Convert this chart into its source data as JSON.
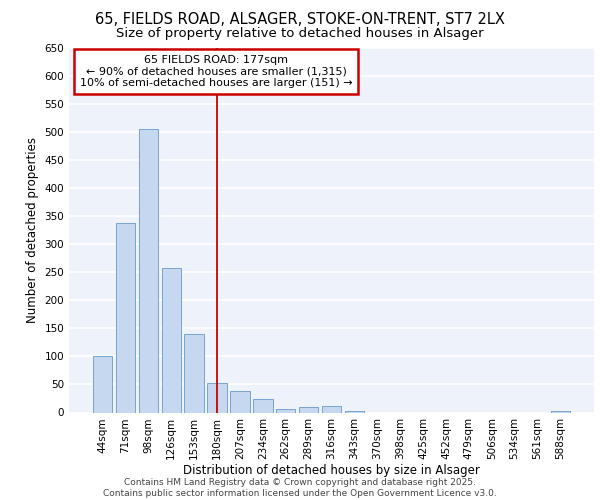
{
  "title1": "65, FIELDS ROAD, ALSAGER, STOKE-ON-TRENT, ST7 2LX",
  "title2": "Size of property relative to detached houses in Alsager",
  "xlabel": "Distribution of detached houses by size in Alsager",
  "ylabel": "Number of detached properties",
  "categories": [
    "44sqm",
    "71sqm",
    "98sqm",
    "126sqm",
    "153sqm",
    "180sqm",
    "207sqm",
    "234sqm",
    "262sqm",
    "289sqm",
    "316sqm",
    "343sqm",
    "370sqm",
    "398sqm",
    "425sqm",
    "452sqm",
    "479sqm",
    "506sqm",
    "534sqm",
    "561sqm",
    "588sqm"
  ],
  "values": [
    100,
    338,
    505,
    257,
    140,
    53,
    38,
    24,
    6,
    10,
    11,
    3,
    0,
    0,
    0,
    0,
    0,
    0,
    0,
    0,
    3
  ],
  "bar_color": "#c5d8f0",
  "bar_edge_color": "#6699cc",
  "vline_x_index": 5,
  "vline_color": "#cc0000",
  "annotation_line1": "65 FIELDS ROAD: 177sqm",
  "annotation_line2": "← 90% of detached houses are smaller (1,315)",
  "annotation_line3": "10% of semi-detached houses are larger (151) →",
  "ylim": [
    0,
    650
  ],
  "yticks": [
    0,
    50,
    100,
    150,
    200,
    250,
    300,
    350,
    400,
    450,
    500,
    550,
    600,
    650
  ],
  "footer_text": "Contains HM Land Registry data © Crown copyright and database right 2025.\nContains public sector information licensed under the Open Government Licence v3.0.",
  "background_color": "#eef2fa",
  "grid_color": "#ffffff",
  "title_fontsize": 10.5,
  "subtitle_fontsize": 9.5,
  "axis_label_fontsize": 8.5,
  "tick_fontsize": 7.5,
  "annotation_fontsize": 8,
  "footer_fontsize": 6.5
}
